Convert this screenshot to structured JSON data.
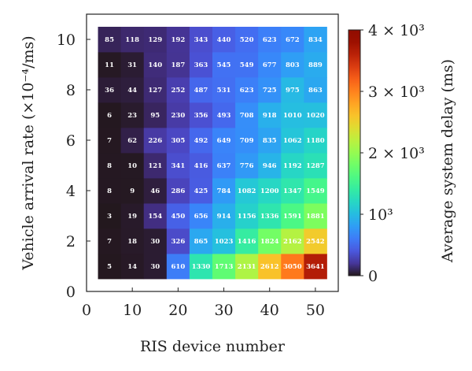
{
  "chart_data": {
    "type": "heatmap",
    "xlabel": "RIS device number",
    "ylabel": "Vehicle arrival rate (×10⁻⁴/ms)",
    "xlim": [
      0,
      55
    ],
    "ylim": [
      0,
      11
    ],
    "x_ticks": [
      "0",
      "10",
      "20",
      "30",
      "40",
      "50"
    ],
    "y_ticks": [
      "0",
      "2",
      "4",
      "6",
      "8",
      "10"
    ],
    "x": [
      5,
      10,
      15,
      20,
      25,
      30,
      35,
      40,
      45,
      50
    ],
    "y": [
      1,
      2,
      3,
      4,
      5,
      6,
      7,
      8,
      9,
      10
    ],
    "values": [
      [
        5,
        14,
        30,
        610,
        1330,
        1713,
        2131,
        2612,
        3050,
        3641
      ],
      [
        7,
        18,
        30,
        326,
        865,
        1023,
        1416,
        1824,
        2162,
        2542
      ],
      [
        3,
        19,
        154,
        450,
        656,
        914,
        1156,
        1336,
        1591,
        1881
      ],
      [
        8,
        9,
        46,
        286,
        425,
        784,
        1082,
        1200,
        1347,
        1549
      ],
      [
        8,
        10,
        121,
        341,
        416,
        637,
        776,
        946,
        1192,
        1287
      ],
      [
        7,
        62,
        226,
        305,
        492,
        649,
        709,
        835,
        1062,
        1180
      ],
      [
        6,
        23,
        95,
        230,
        356,
        493,
        708,
        918,
        1010,
        1020
      ],
      [
        36,
        44,
        127,
        252,
        487,
        531,
        623,
        725,
        975,
        863
      ],
      [
        11,
        31,
        140,
        187,
        363,
        545,
        549,
        677,
        803,
        889
      ],
      [
        85,
        118,
        129,
        192,
        343,
        440,
        520,
        623,
        672,
        834
      ]
    ],
    "colorbar": {
      "label": "Average system delay (ms)",
      "range": [
        0,
        4000
      ],
      "colormap": "turbo",
      "ticks": [
        {
          "value": 0,
          "label": "0"
        },
        {
          "value": 1000,
          "label": "10³"
        },
        {
          "value": 2000,
          "label": "2 × 10³"
        },
        {
          "value": 3000,
          "label": "3 × 10³"
        },
        {
          "value": 4000,
          "label": "4 × 10³"
        }
      ]
    },
    "grid": false
  }
}
